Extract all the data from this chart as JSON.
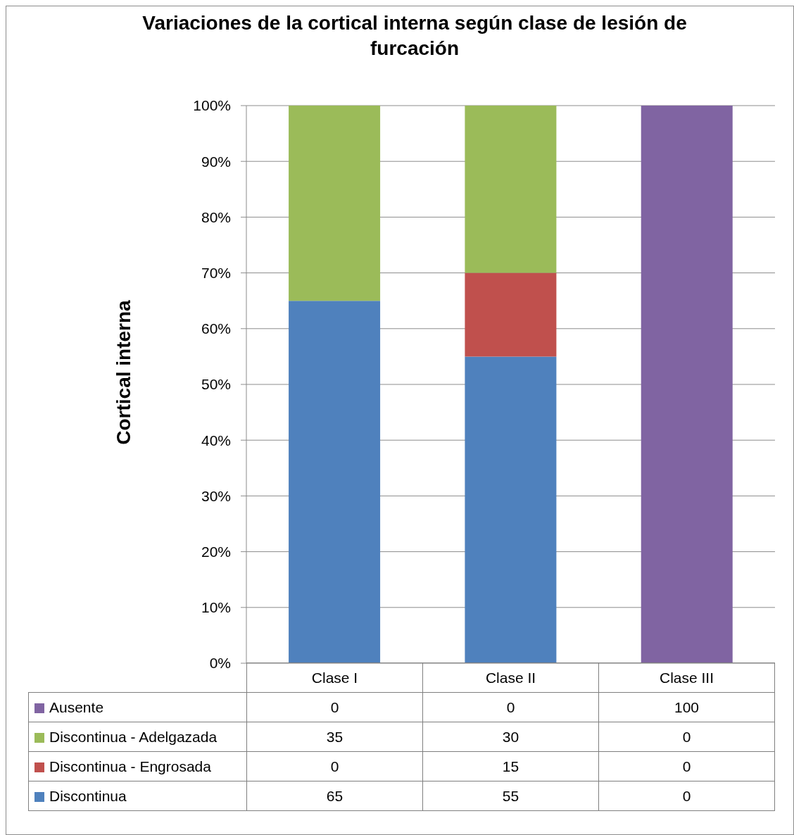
{
  "chart_data": {
    "type": "bar",
    "title": "Variaciones de la cortical interna según clase de lesión de furcación",
    "ylabel": "Cortical interna",
    "categories": [
      "Clase I",
      "Clase II",
      "Clase III"
    ],
    "stacked": true,
    "series": [
      {
        "name": "Discontinua",
        "color": "#4f81bd",
        "values": [
          65,
          55,
          0
        ]
      },
      {
        "name": "Discontinua - Engrosada",
        "color": "#c0504d",
        "values": [
          0,
          15,
          0
        ]
      },
      {
        "name": "Discontinua - Adelgazada",
        "color": "#9bbb59",
        "values": [
          35,
          30,
          0
        ]
      },
      {
        "name": "Ausente",
        "color": "#8064a2",
        "values": [
          0,
          0,
          100
        ]
      }
    ],
    "ylim": [
      0,
      100
    ],
    "yticks": [
      {
        "value": 0,
        "label": "0%"
      },
      {
        "value": 10,
        "label": "10%"
      },
      {
        "value": 20,
        "label": "20%"
      },
      {
        "value": 30,
        "label": "30%"
      },
      {
        "value": 40,
        "label": "40%"
      },
      {
        "value": 50,
        "label": "50%"
      },
      {
        "value": 60,
        "label": "60%"
      },
      {
        "value": 70,
        "label": "70%"
      },
      {
        "value": 80,
        "label": "80%"
      },
      {
        "value": 90,
        "label": "90%"
      },
      {
        "value": 100,
        "label": "100%"
      }
    ],
    "grid": "y",
    "legend": "bottom",
    "data_labels": true
  }
}
